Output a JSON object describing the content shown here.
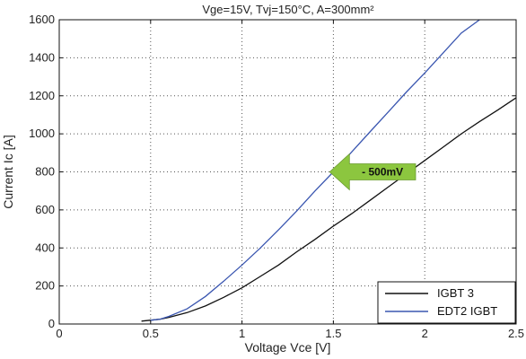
{
  "chart_data": {
    "type": "line",
    "title": "Vge=15V, Tvj=150°C, A=300mm²",
    "xlabel": "Voltage Vce [V]",
    "ylabel": "Current Ic [A]",
    "xlim": [
      0,
      2.5
    ],
    "ylim": [
      0,
      1600
    ],
    "x_ticks": [
      0,
      0.5,
      1,
      1.5,
      2,
      2.5
    ],
    "x_tick_labels": [
      "0",
      "0.5",
      "1",
      "1.5",
      "2",
      "2.5"
    ],
    "y_ticks": [
      0,
      200,
      400,
      600,
      800,
      1000,
      1200,
      1400,
      1600
    ],
    "y_tick_labels": [
      "0",
      "200",
      "400",
      "600",
      "800",
      "1000",
      "1200",
      "1400",
      "1600"
    ],
    "grid": true,
    "legend_position": "bottom-right",
    "series": [
      {
        "name": "IGBT 3",
        "color": "#111111",
        "points": [
          [
            0.45,
            15
          ],
          [
            0.55,
            25
          ],
          [
            0.6,
            35
          ],
          [
            0.7,
            60
          ],
          [
            0.8,
            95
          ],
          [
            0.9,
            140
          ],
          [
            1.0,
            190
          ],
          [
            1.1,
            250
          ],
          [
            1.2,
            310
          ],
          [
            1.3,
            380
          ],
          [
            1.4,
            445
          ],
          [
            1.5,
            515
          ],
          [
            1.6,
            580
          ],
          [
            1.7,
            650
          ],
          [
            1.8,
            720
          ],
          [
            1.9,
            790
          ],
          [
            2.0,
            860
          ],
          [
            2.1,
            930
          ],
          [
            2.2,
            1000
          ],
          [
            2.3,
            1065
          ],
          [
            2.4,
            1125
          ],
          [
            2.5,
            1190
          ]
        ]
      },
      {
        "name": "EDT2 IGBT",
        "color": "#3a56b0",
        "points": [
          [
            0.5,
            20
          ],
          [
            0.55,
            25
          ],
          [
            0.6,
            40
          ],
          [
            0.7,
            80
          ],
          [
            0.8,
            145
          ],
          [
            0.9,
            225
          ],
          [
            1.0,
            310
          ],
          [
            1.1,
            400
          ],
          [
            1.2,
            495
          ],
          [
            1.3,
            595
          ],
          [
            1.4,
            700
          ],
          [
            1.5,
            800
          ],
          [
            1.6,
            905
          ],
          [
            1.7,
            1010
          ],
          [
            1.8,
            1115
          ],
          [
            1.9,
            1220
          ],
          [
            2.0,
            1320
          ],
          [
            2.1,
            1425
          ],
          [
            2.2,
            1530
          ],
          [
            2.3,
            1600
          ]
        ]
      }
    ],
    "annotation": {
      "text": "- 500mV",
      "color": "#8cc63f",
      "direction": "left",
      "tip_x": 1.48,
      "tip_y": 800,
      "tail_x": 1.95,
      "y": 800
    }
  }
}
